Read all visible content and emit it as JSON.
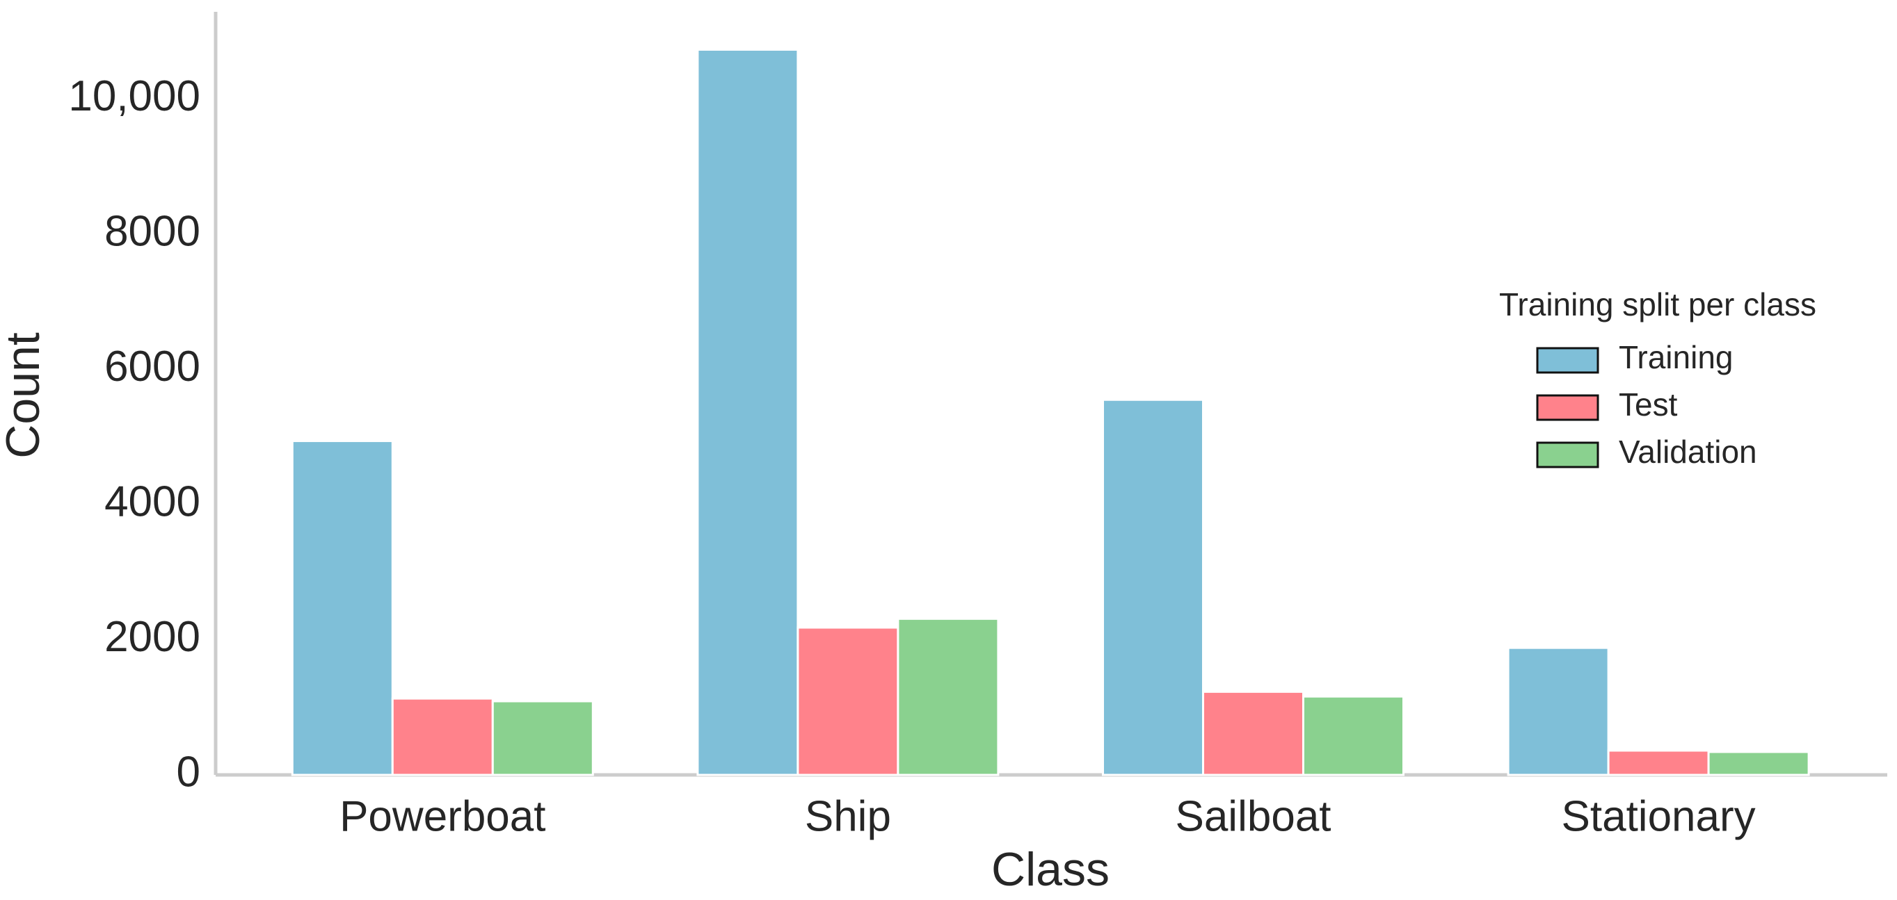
{
  "chart_data": {
    "type": "bar",
    "x_label": "Class",
    "y_label": "Count",
    "categories": [
      "Powerboat",
      "Ship",
      "Sailboat",
      "Stationary"
    ],
    "series": [
      {
        "name": "Training",
        "color": "#7fbfd8",
        "values": [
          4940,
          10730,
          5550,
          1880
        ]
      },
      {
        "name": "Test",
        "color": "#ff828b",
        "values": [
          1130,
          2180,
          1230,
          360
        ]
      },
      {
        "name": "Validation",
        "color": "#8ad18f",
        "values": [
          1090,
          2310,
          1160,
          340
        ]
      }
    ],
    "ylim": [
      0,
      11290
    ],
    "yticks": [
      0,
      2000,
      4000,
      6000,
      8000,
      {
        "value": 10000,
        "label": "10,000"
      }
    ],
    "grid": false,
    "legend_title": "Training split per class",
    "legend": "center right"
  }
}
